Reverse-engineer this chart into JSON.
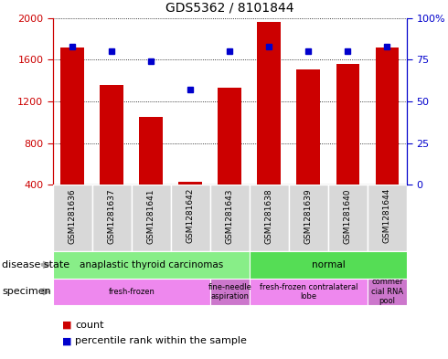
{
  "title": "GDS5362 / 8101844",
  "samples": [
    "GSM1281636",
    "GSM1281637",
    "GSM1281641",
    "GSM1281642",
    "GSM1281643",
    "GSM1281638",
    "GSM1281639",
    "GSM1281640",
    "GSM1281644"
  ],
  "counts": [
    1720,
    1360,
    1050,
    430,
    1330,
    1960,
    1510,
    1560,
    1720
  ],
  "percentiles": [
    83,
    80,
    74,
    57,
    80,
    83,
    80,
    80,
    83
  ],
  "ylim_left": [
    400,
    2000
  ],
  "ylim_right": [
    0,
    100
  ],
  "yticks_left": [
    400,
    800,
    1200,
    1600,
    2000
  ],
  "yticks_right": [
    0,
    25,
    50,
    75,
    100
  ],
  "bar_color": "#cc0000",
  "dot_color": "#0000cc",
  "disease_state_groups": [
    {
      "label": "anaplastic thyroid carcinomas",
      "start": 0,
      "end": 5,
      "color": "#88ee88"
    },
    {
      "label": "normal",
      "start": 5,
      "end": 9,
      "color": "#55dd55"
    }
  ],
  "specimen_groups": [
    {
      "label": "fresh-frozen",
      "start": 0,
      "end": 4,
      "color": "#ee88ee"
    },
    {
      "label": "fine-needle\naspiration",
      "start": 4,
      "end": 5,
      "color": "#cc77cc"
    },
    {
      "label": "fresh-frozen contralateral\nlobe",
      "start": 5,
      "end": 8,
      "color": "#ee88ee"
    },
    {
      "label": "commer\ncial RNA\npool",
      "start": 8,
      "end": 9,
      "color": "#cc77cc"
    }
  ],
  "legend_count_label": "count",
  "legend_percentile_label": "percentile rank within the sample",
  "background_color": "#ffffff"
}
